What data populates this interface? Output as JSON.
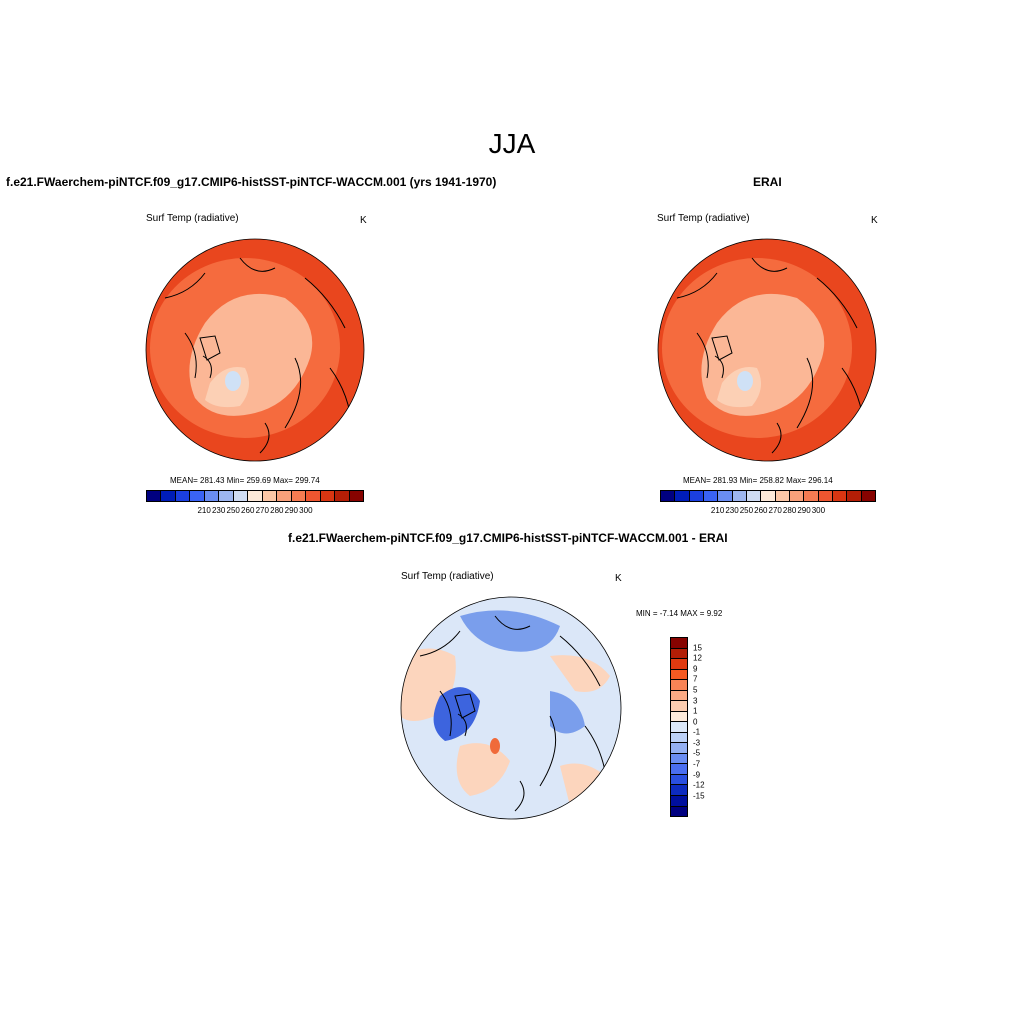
{
  "title": "JJA",
  "panels": [
    {
      "title": "f.e21.FWaerchem-piNTCF.f09_g17.CMIP6-histSST-piNTCF-WACCM.001 (yrs 1941-1970)",
      "variable": "Surf Temp (radiative)",
      "units": "K",
      "stats": "MEAN= 281.43  Min= 259.69  Max= 299.74"
    },
    {
      "title": "ERAI",
      "variable": "Surf Temp (radiative)",
      "units": "K",
      "stats": "MEAN= 281.93  Min= 258.82  Max= 296.14"
    },
    {
      "title": "f.e21.FWaerchem-piNTCF.f09_g17.CMIP6-histSST-piNTCF-WACCM.001 - ERAI",
      "variable": "Surf Temp (radiative)",
      "units": "K",
      "stats": "MIN =  -7.14 MAX =   9.92"
    }
  ],
  "abs_colorbar": {
    "colors": [
      "#000080",
      "#001db8",
      "#1b3fe0",
      "#3a63f5",
      "#6a8df2",
      "#9db6f0",
      "#cfdcf3",
      "#fde9d8",
      "#fcc7a6",
      "#f9a07a",
      "#f57b52",
      "#ee5630",
      "#d93612",
      "#b31e06",
      "#870300"
    ],
    "labels": [
      "210",
      "230",
      "250",
      "260",
      "270",
      "280",
      "290",
      "300"
    ]
  },
  "diff_colorbar": {
    "colors": [
      "#870300",
      "#b31e06",
      "#e13a10",
      "#f55a22",
      "#f98456",
      "#fbaa84",
      "#fccdb0",
      "#fdeada",
      "#dce8f9",
      "#bcd1f7",
      "#94b0f2",
      "#6a8df2",
      "#4a6ef0",
      "#2a4fe0",
      "#0d2bc0",
      "#000f9e",
      "#000080"
    ],
    "labels": [
      "15",
      "12",
      "9",
      "7",
      "5",
      "3",
      "1",
      "0",
      "-1",
      "-3",
      "-5",
      "-7",
      "-9",
      "-12",
      "-15"
    ]
  },
  "map_colors": {
    "warm_outer": "#e9461e",
    "warm_mid": "#f56b3e",
    "warm_light": "#fbb796",
    "cold_pale": "#cfe1f6",
    "diff_bg": "#dbe7f8",
    "diff_blue": "#7a9eec",
    "diff_darkblue": "#3d64de",
    "diff_pink": "#fcd5bd",
    "diff_red": "#f06a3a"
  }
}
